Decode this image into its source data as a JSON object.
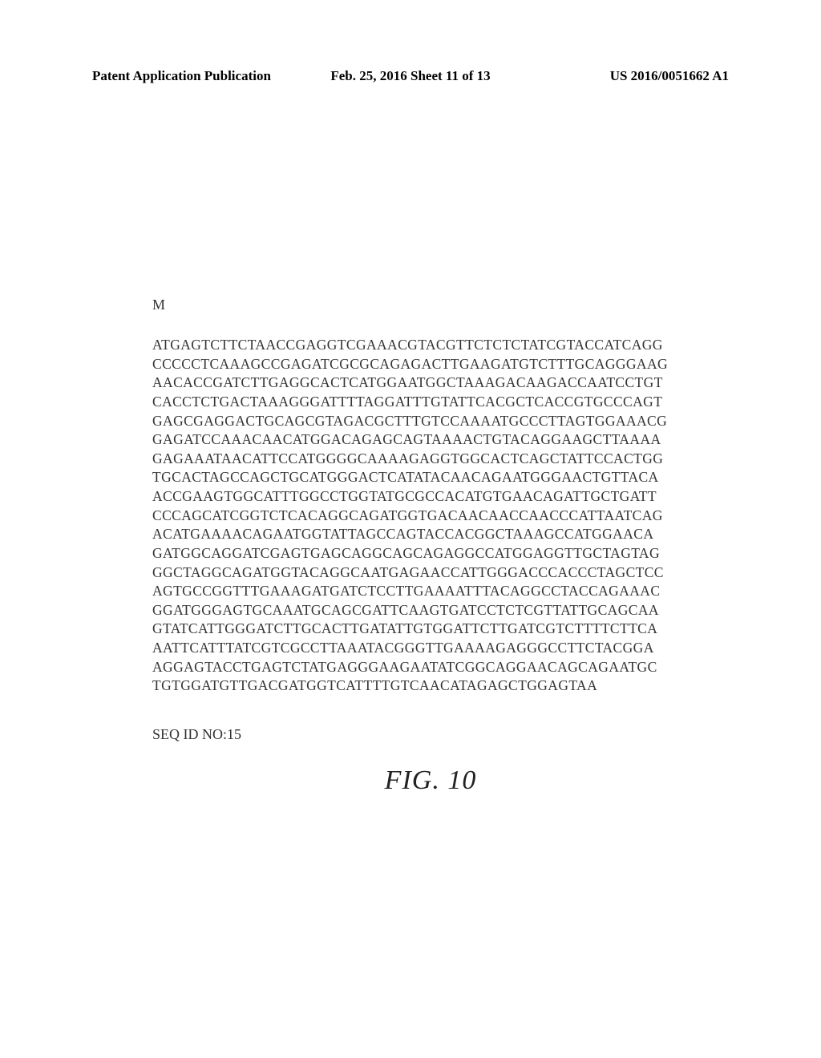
{
  "header": {
    "left": "Patent Application Publication",
    "center": "Feb. 25, 2016  Sheet 11 of 13",
    "right": "US 2016/0051662 A1"
  },
  "gene_label": "M",
  "sequence_lines": [
    "ATGAGTCTTCTAACCGAGGTCGAAACGTACGTTCTCTCTATCGTACCATCAGG",
    "CCCCCTCAAAGCCGAGATCGCGCAGAGACTTGAAGATGTCTTTGCAGGGAAG",
    "AACACCGATCTTGAGGCACTCATGGAATGGCTAAAGACAAGACCAATCCTGT",
    "CACCTCTGACTAAAGGGATTTTAGGATTTGTATTCACGCTCACCGTGCCCAGT",
    "GAGCGAGGACTGCAGCGTAGACGCTTTGTCCAAAATGCCCTTAGTGGAAACG",
    "GAGATCCAAACAACATGGACAGAGCAGTAAAACTGTACAGGAAGCTTAAAA",
    "GAGAAATAACATTCCATGGGGCAAAAGAGGTGGCACTCAGCTATTCCACTGG",
    "TGCACTAGCCAGCTGCATGGGACTCATATACAACAGAATGGGAACTGTTACA",
    "ACCGAAGTGGCATTTGGCCTGGTATGCGCCACATGTGAACAGATTGCTGATT",
    "CCCAGCATCGGTCTCACAGGCAGATGGTGACAACAACCAACCCATTAATCAG",
    "ACATGAAAACAGAATGGTATTAGCCAGTACCACGGCTAAAGCCATGGAACA",
    "GATGGCAGGATCGAGTGAGCAGGCAGCAGAGGCCATGGAGGTTGCTAGTAG",
    "GGCTAGGCAGATGGTACAGGCAATGAGAACCATTGGGACCCACCCTAGCTCC",
    "AGTGCCGGTTTGAAAGATGATCTCCTTGAAAATTTACAGGCCTACCAGAAAC",
    "GGATGGGAGTGCAAATGCAGCGATTCAAGTGATCCTCTCGTTATTGCAGCAA",
    "GTATCATTGGGATCTTGCACTTGATATTGTGGATTCTTGATCGTCTTTTCTTCA",
    "AATTCATTTATCGTCGCCTTAAATACGGGTTGAAAAGAGGGCCTTCTACGGA",
    "AGGAGTACCTGAGTCTATGAGGGAAGAATATCGGCAGGAACAGCAGAATGC",
    "TGTGGATGTTGACGATGGTCATTTTGTCAACATAGAGCTGGAGTAA"
  ],
  "seq_id": "SEQ ID NO:15",
  "figure_label": "FIG. 10"
}
